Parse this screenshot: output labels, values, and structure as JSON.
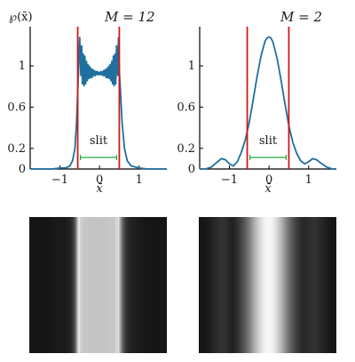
{
  "figure": {
    "ylabel": "℘(x̄)",
    "xlabel": "x̄",
    "slit_label": "slit"
  },
  "colors": {
    "curve": "#1f6f9f",
    "slit_edges": "#d01818",
    "slit_bar": "#22aa44"
  },
  "chart_data": [
    {
      "type": "line",
      "title": "M = 12",
      "xlabel": "x̄",
      "ylabel": "℘(x̄)",
      "xlim": [
        -1.75,
        1.7
      ],
      "ylim": [
        0,
        1.38
      ],
      "xticks": [
        -1,
        0,
        1
      ],
      "xtick_labels": [
        "−1",
        "0",
        "1"
      ],
      "yticks": [
        0,
        0.2,
        0.6,
        1
      ],
      "ytick_labels": [
        "0",
        "0.2",
        "0.6",
        "1"
      ],
      "slit": [
        -0.55,
        0.5
      ],
      "series": [
        {
          "x": [
            -1.75,
            -1.5,
            -1.2,
            -1.0,
            -0.85,
            -0.75,
            -0.68,
            -0.62,
            -0.58,
            -0.55,
            -0.53,
            -0.5,
            -0.47,
            -0.45,
            -0.43,
            -0.41,
            -0.39,
            -0.37,
            -0.35,
            -0.33,
            -0.31,
            -0.29,
            -0.27,
            -0.25,
            -0.23,
            -0.21,
            -0.19,
            -0.17,
            -0.15,
            -0.13,
            -0.11,
            -0.09,
            -0.07,
            -0.05,
            -0.03,
            -0.01,
            0.01,
            0.03,
            0.05,
            0.07,
            0.09,
            0.11,
            0.13,
            0.15,
            0.17,
            0.19,
            0.21,
            0.23,
            0.25,
            0.27,
            0.29,
            0.31,
            0.33,
            0.35,
            0.37,
            0.39,
            0.41,
            0.43,
            0.46,
            0.48,
            0.5,
            0.53,
            0.57,
            0.63,
            0.7,
            0.8,
            1.0,
            1.2,
            1.5,
            1.7
          ],
          "y": [
            0.0,
            0.0,
            0.0,
            0.01,
            0.01,
            0.03,
            0.08,
            0.2,
            0.45,
            0.75,
            0.95,
            1.28,
            0.9,
            1.2,
            0.82,
            1.12,
            0.8,
            1.1,
            0.82,
            1.05,
            0.85,
            1.02,
            0.87,
            1.0,
            0.88,
            0.98,
            0.88,
            0.97,
            0.9,
            0.96,
            0.9,
            0.95,
            0.91,
            0.95,
            0.91,
            0.94,
            0.91,
            0.95,
            0.91,
            0.95,
            0.9,
            0.96,
            0.9,
            0.97,
            0.88,
            0.98,
            0.88,
            1.0,
            0.87,
            1.02,
            0.85,
            1.05,
            0.82,
            1.1,
            0.8,
            1.12,
            0.82,
            1.2,
            0.9,
            1.28,
            0.95,
            0.75,
            0.45,
            0.2,
            0.08,
            0.03,
            0.01,
            0.0,
            0.0,
            0.0
          ]
        }
      ]
    },
    {
      "type": "line",
      "title": "M = 2",
      "xlabel": "x̄",
      "ylabel": "",
      "xlim": [
        -1.75,
        1.7
      ],
      "ylim": [
        0,
        1.38
      ],
      "xticks": [
        -1,
        0,
        1
      ],
      "xtick_labels": [
        "−1",
        "0",
        "1"
      ],
      "yticks": [
        0,
        0.2,
        0.6,
        1
      ],
      "ytick_labels": [
        "0",
        "0.2",
        "0.6",
        "1"
      ],
      "slit": [
        -0.55,
        0.5
      ],
      "series": [
        {
          "x": [
            -1.75,
            -1.6,
            -1.45,
            -1.3,
            -1.2,
            -1.1,
            -1.0,
            -0.9,
            -0.8,
            -0.7,
            -0.6,
            -0.5,
            -0.4,
            -0.3,
            -0.2,
            -0.1,
            -0.05,
            0.0,
            0.05,
            0.1,
            0.2,
            0.3,
            0.4,
            0.5,
            0.6,
            0.7,
            0.8,
            0.9,
            1.0,
            1.1,
            1.2,
            1.3,
            1.45,
            1.6,
            1.7
          ],
          "y": [
            0.0,
            0.0,
            0.02,
            0.07,
            0.1,
            0.09,
            0.05,
            0.03,
            0.07,
            0.16,
            0.28,
            0.45,
            0.67,
            0.9,
            1.1,
            1.24,
            1.27,
            1.28,
            1.27,
            1.23,
            1.08,
            0.87,
            0.64,
            0.42,
            0.26,
            0.15,
            0.08,
            0.05,
            0.07,
            0.1,
            0.09,
            0.06,
            0.02,
            0.0,
            0.0
          ]
        }
      ]
    }
  ]
}
